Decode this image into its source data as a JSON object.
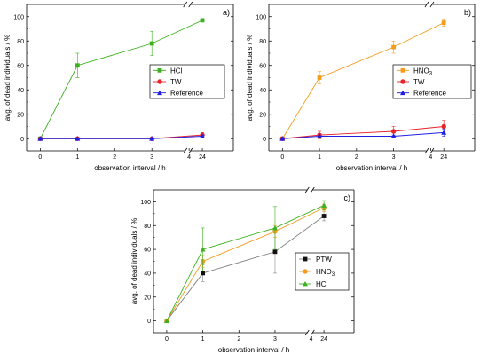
{
  "chart_data": [
    {
      "type": "line",
      "panel": "a)",
      "xlabel": "observation interval / h",
      "ylabel": "avg. of dead individuals / %",
      "ylim": [
        -10,
        110
      ],
      "x_ticks": [
        "0",
        "1",
        "2",
        "3",
        "4",
        "24"
      ],
      "y_ticks": [
        "0",
        "20",
        "40",
        "60",
        "80",
        "100"
      ],
      "x_axis_break": "between 4 and 24",
      "grid": false,
      "legend_position": "center-right",
      "series": [
        {
          "name": "HCl",
          "color": "#3cb01e",
          "marker": "square",
          "x": [
            0,
            1,
            3,
            24
          ],
          "y": [
            0,
            60,
            78,
            97
          ],
          "err": [
            0,
            10,
            10,
            0
          ]
        },
        {
          "name": "TW",
          "color": "#e8232a",
          "marker": "circle",
          "x": [
            0,
            1,
            3,
            24
          ],
          "y": [
            0,
            0,
            0,
            3
          ],
          "err": [
            0,
            0,
            0,
            2
          ]
        },
        {
          "name": "Reference",
          "color": "#2020e0",
          "marker": "triangle",
          "x": [
            0,
            1,
            3,
            24
          ],
          "y": [
            0,
            0,
            0,
            2
          ],
          "err": [
            0,
            0,
            0,
            1
          ]
        }
      ]
    },
    {
      "type": "line",
      "panel": "b)",
      "xlabel": "observation interval / h",
      "ylabel": "avg. of dead individuals / %",
      "ylim": [
        -10,
        110
      ],
      "x_ticks": [
        "0",
        "1",
        "2",
        "3",
        "4",
        "24"
      ],
      "y_ticks": [
        "0",
        "20",
        "40",
        "60",
        "80",
        "100"
      ],
      "x_axis_break": "between 4 and 24",
      "grid": false,
      "legend_position": "center-right",
      "series": [
        {
          "name": "HNO",
          "name_subscript": "3",
          "color": "#f39c1e",
          "marker": "square",
          "x": [
            0,
            1,
            3,
            24
          ],
          "y": [
            0,
            50,
            75,
            95
          ],
          "err": [
            0,
            5,
            5,
            3
          ]
        },
        {
          "name": "TW",
          "color": "#e8232a",
          "marker": "circle",
          "x": [
            0,
            1,
            3,
            24
          ],
          "y": [
            0,
            3,
            6,
            10
          ],
          "err": [
            0,
            3,
            4,
            5
          ]
        },
        {
          "name": "Reference",
          "color": "#2020e0",
          "marker": "triangle",
          "x": [
            0,
            1,
            3,
            24
          ],
          "y": [
            0,
            2,
            2,
            5
          ],
          "err": [
            0,
            1,
            1,
            3
          ]
        }
      ]
    },
    {
      "type": "line",
      "panel": "c)",
      "xlabel": "observation interval / h",
      "ylabel": "avg. of dead individuals / %",
      "ylim": [
        -10,
        110
      ],
      "x_ticks": [
        "0",
        "1",
        "2",
        "3",
        "4",
        "24"
      ],
      "y_ticks": [
        "0",
        "20",
        "40",
        "60",
        "80",
        "100"
      ],
      "x_axis_break": "between 4 and 24",
      "grid": false,
      "legend_position": "center-right",
      "series": [
        {
          "name": "PTW",
          "color": "#111111",
          "marker": "square",
          "line_color": "#808080",
          "x": [
            0,
            1,
            3,
            24
          ],
          "y": [
            0,
            40,
            58,
            88
          ],
          "err": [
            0,
            7,
            18,
            4
          ]
        },
        {
          "name": "HNO",
          "name_subscript": "3",
          "color": "#f39c1e",
          "marker": "circle",
          "x": [
            0,
            1,
            3,
            24
          ],
          "y": [
            0,
            50,
            75,
            95
          ],
          "err": [
            0,
            5,
            5,
            3
          ]
        },
        {
          "name": "HCl",
          "color": "#3cb01e",
          "marker": "triangle",
          "x": [
            0,
            1,
            3,
            24
          ],
          "y": [
            0,
            60,
            78,
            97
          ],
          "err": [
            0,
            18,
            18,
            4
          ]
        }
      ]
    }
  ]
}
